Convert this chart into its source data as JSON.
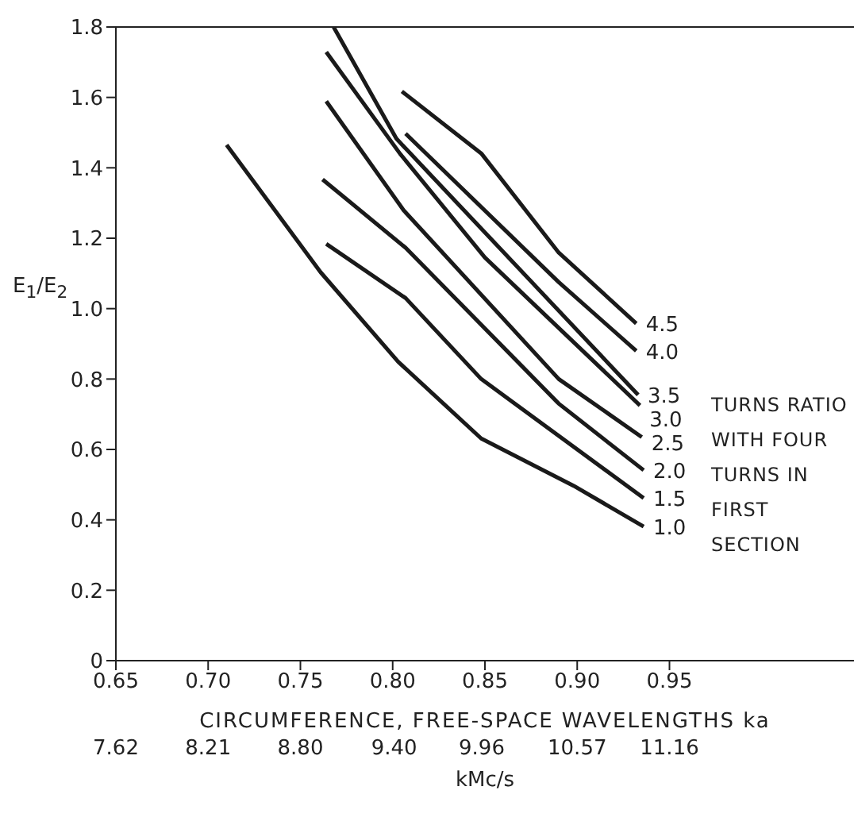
{
  "chart_data": {
    "type": "line",
    "xlabel": "CIRCUMFERENCE, FREE-SPACE WAVELENGTHS ka",
    "ylabel": "E$_{1}$/E$_{2}$",
    "x2label": "kMc/s",
    "xlim": [
      0.65,
      1.05
    ],
    "xticks": [
      {
        "value": 0.65,
        "label": "0.65"
      },
      {
        "value": 0.7,
        "label": "0.70"
      },
      {
        "value": 0.75,
        "label": "0.75"
      },
      {
        "value": 0.8,
        "label": "0.80"
      },
      {
        "value": 0.85,
        "label": "0.85"
      },
      {
        "value": 0.9,
        "label": "0.90"
      },
      {
        "value": 0.95,
        "label": "0.95"
      }
    ],
    "x2lim": [
      7.62,
      12.34
    ],
    "x2ticks": [
      7.62,
      8.21,
      {
        "value": 8.8,
        "label": "8.80"
      },
      {
        "value": 9.4,
        "label": "9.40"
      },
      9.96,
      10.57,
      11.16
    ],
    "ylim": [
      0,
      1.8
    ],
    "yticks": [
      0,
      0.2,
      0.4,
      0.6,
      0.8,
      {
        "value": 1.0,
        "label": "1.0"
      },
      1.2,
      1.4,
      1.6,
      1.8
    ],
    "grid": false,
    "legend": false,
    "marker": "none",
    "line_style": "solid",
    "annotations": [
      "TURNS RATIO WITH FOUR TURNS IN FIRST SECTION"
    ],
    "series": [
      {
        "name": "1.0",
        "color": "#1a1a1a",
        "x": [
          0.71,
          0.761,
          0.803,
          0.848,
          0.898,
          0.936
        ],
        "values": [
          1.465,
          1.103,
          0.849,
          0.631,
          0.497,
          0.381
        ]
      },
      {
        "name": "1.5",
        "color": "#1a1a1a",
        "x": [
          0.764,
          0.807,
          0.848,
          0.936
        ],
        "values": [
          1.184,
          1.03,
          0.8,
          0.462
        ]
      },
      {
        "name": "2.0",
        "color": "#1a1a1a",
        "x": [
          0.762,
          0.807,
          0.89,
          0.936
        ],
        "values": [
          1.367,
          1.173,
          0.73,
          0.541
        ]
      },
      {
        "name": "2.5",
        "color": "#1a1a1a",
        "x": [
          0.764,
          0.806,
          0.89,
          0.935
        ],
        "values": [
          1.589,
          1.279,
          0.8,
          0.635
        ]
      },
      {
        "name": "3.0",
        "color": "#1a1a1a",
        "x": [
          0.764,
          0.804,
          0.85,
          0.934
        ],
        "values": [
          1.729,
          1.44,
          1.145,
          0.725
        ]
      },
      {
        "name": "3.5",
        "color": "#1a1a1a",
        "x": [
          0.768,
          0.802,
          0.933
        ],
        "values": [
          1.8,
          1.483,
          0.755
        ]
      },
      {
        "name": "4.0",
        "color": "#1a1a1a",
        "x": [
          0.807,
          0.89,
          0.932
        ],
        "values": [
          1.497,
          1.075,
          0.88
        ]
      },
      {
        "name": "4.5",
        "color": "#1a1a1a",
        "x": [
          0.805,
          0.848,
          0.89,
          0.932
        ],
        "values": [
          1.617,
          1.441,
          1.159,
          0.958
        ]
      }
    ]
  }
}
